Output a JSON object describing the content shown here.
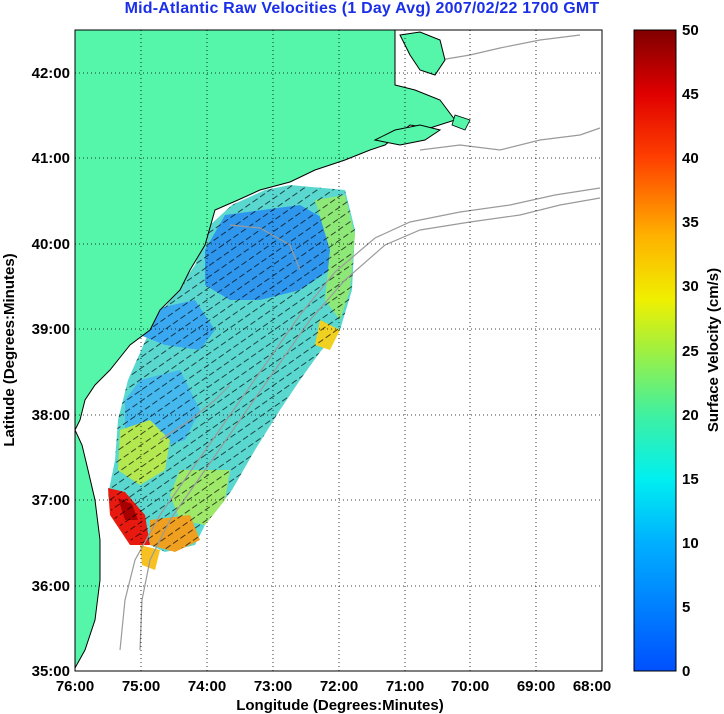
{
  "title": "Mid-Atlantic Raw Velocities (1 Day Avg) 2007/02/22 1700 GMT",
  "map": {
    "xlabel": "Longitude (Degrees:Minutes)",
    "ylabel": "Latitude (Degrees:Minutes)",
    "lon_range": [
      -76,
      -68
    ],
    "lat_range": [
      35,
      42.5
    ],
    "x_ticks": [
      "76:00",
      "75:00",
      "74:00",
      "73:00",
      "72:00",
      "71:00",
      "70:00",
      "69:00",
      "68:00"
    ],
    "y_ticks": [
      "35:00",
      "36:00",
      "37:00",
      "38:00",
      "39:00",
      "40:00",
      "41:00",
      "42:00"
    ],
    "grid": "dotted",
    "land_color": "#55f5aa",
    "bathymetry_color": "#9a9a9a"
  },
  "colorbar": {
    "label": "Surface Velocity (cm/s)",
    "ticks": [
      "0",
      "5",
      "10",
      "15",
      "20",
      "25",
      "30",
      "35",
      "40",
      "45",
      "50"
    ],
    "range": [
      0,
      50
    ],
    "colormap": "jet"
  }
}
